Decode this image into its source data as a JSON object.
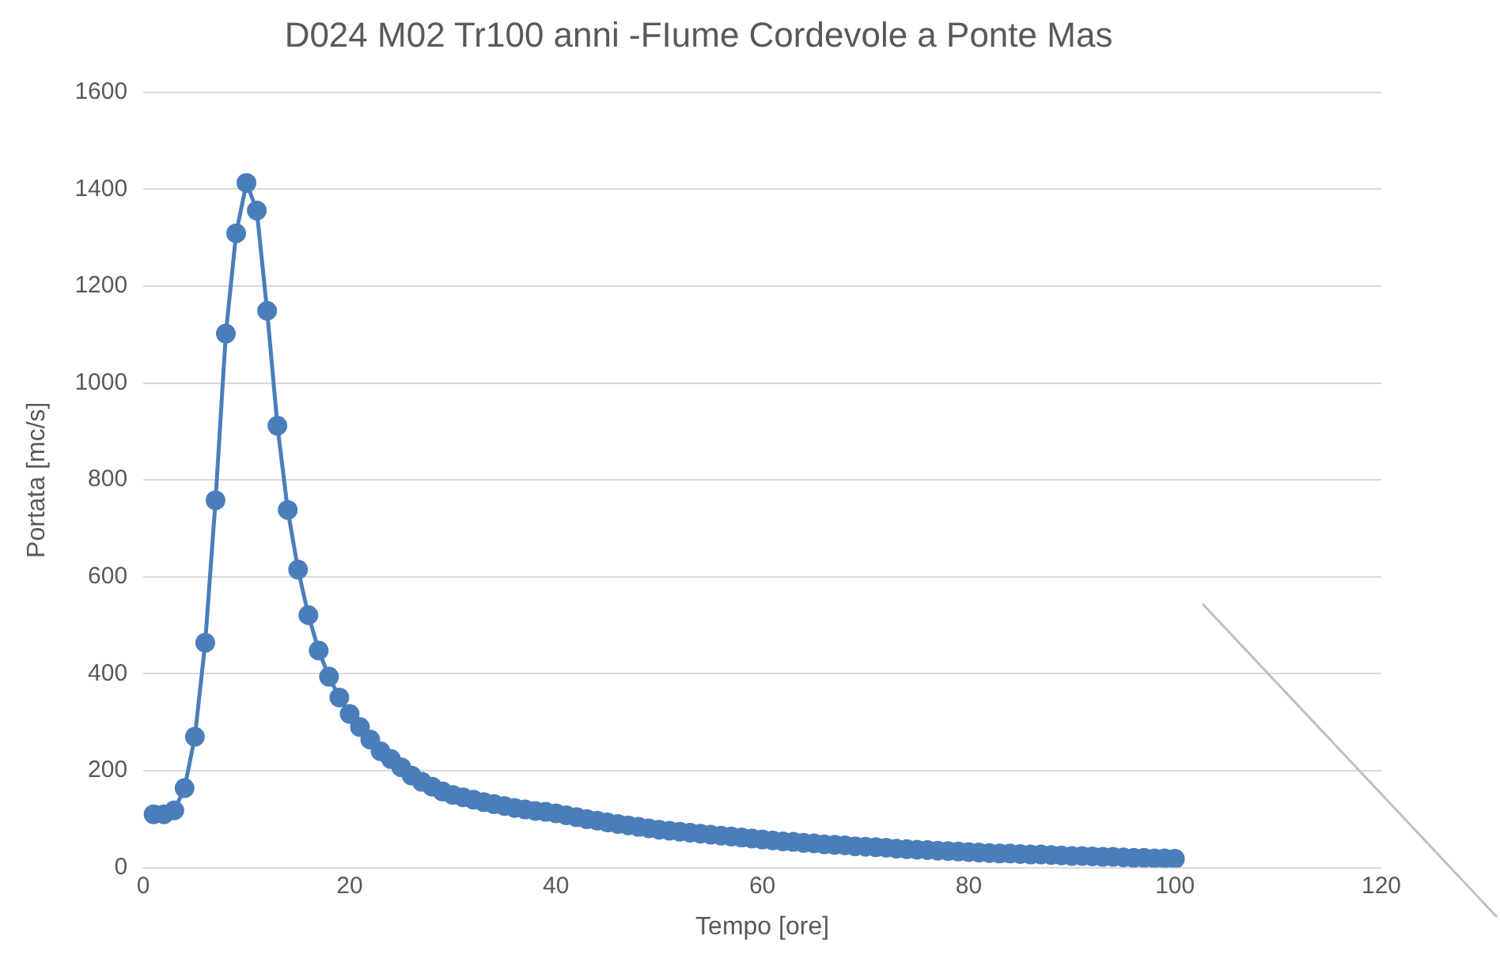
{
  "chart_data": {
    "type": "line",
    "title": "D024 M02 Tr100 anni -FIume Cordevole a Ponte Mas",
    "xlabel": "Tempo [ore]",
    "ylabel": "Portata [mc/s]",
    "x": [
      1,
      2,
      3,
      4,
      5,
      6,
      7,
      8,
      9,
      10,
      11,
      12,
      13,
      14,
      15,
      16,
      17,
      18,
      19,
      20,
      21,
      22,
      23,
      24,
      25,
      26,
      27,
      28,
      29,
      30,
      31,
      32,
      33,
      34,
      35,
      36,
      37,
      38,
      39,
      40,
      41,
      42,
      43,
      44,
      45,
      46,
      47,
      48,
      49,
      50,
      51,
      52,
      53,
      54,
      55,
      56,
      57,
      58,
      59,
      60,
      61,
      62,
      63,
      64,
      65,
      66,
      67,
      68,
      69,
      70,
      71,
      72,
      73,
      74,
      75,
      76,
      77,
      78,
      79,
      80,
      81,
      82,
      83,
      84,
      85,
      86,
      87,
      88,
      89,
      90,
      91,
      92,
      93,
      94,
      95,
      96,
      97,
      98,
      99,
      100
    ],
    "series": [
      {
        "color": "#4a7ebb",
        "values": [
          110,
          110,
          118,
          164,
          270,
          464,
          758,
          1102,
          1309,
          1413,
          1356,
          1149,
          912,
          738,
          615,
          521,
          448,
          394,
          351,
          317,
          290,
          264,
          240,
          224,
          207,
          190,
          177,
          167,
          157,
          150,
          145,
          140,
          135,
          131,
          127,
          123,
          120,
          117,
          115,
          112,
          108,
          104,
          100,
          97,
          93,
          90,
          87,
          84,
          81,
          78,
          76,
          74,
          72,
          70,
          68,
          66,
          64,
          62,
          60,
          58,
          56,
          54,
          53,
          51,
          50,
          48,
          47,
          46,
          44,
          43,
          42,
          41,
          39,
          38,
          37,
          36,
          35,
          34,
          33,
          32,
          31,
          30,
          29,
          29,
          28,
          27,
          27,
          26,
          25,
          24,
          24,
          23,
          22,
          22,
          21,
          20,
          20,
          19,
          19,
          18
        ]
      }
    ],
    "xlim": [
      0,
      120
    ],
    "xticks": [
      0,
      20,
      40,
      60,
      80,
      100,
      120
    ],
    "ylim": [
      0,
      1600
    ],
    "yticks": [
      0,
      200,
      400,
      600,
      800,
      1000,
      1200,
      1400,
      1600
    ],
    "grid": "y",
    "legend": false,
    "marker": "circle",
    "line_style": "solid"
  }
}
